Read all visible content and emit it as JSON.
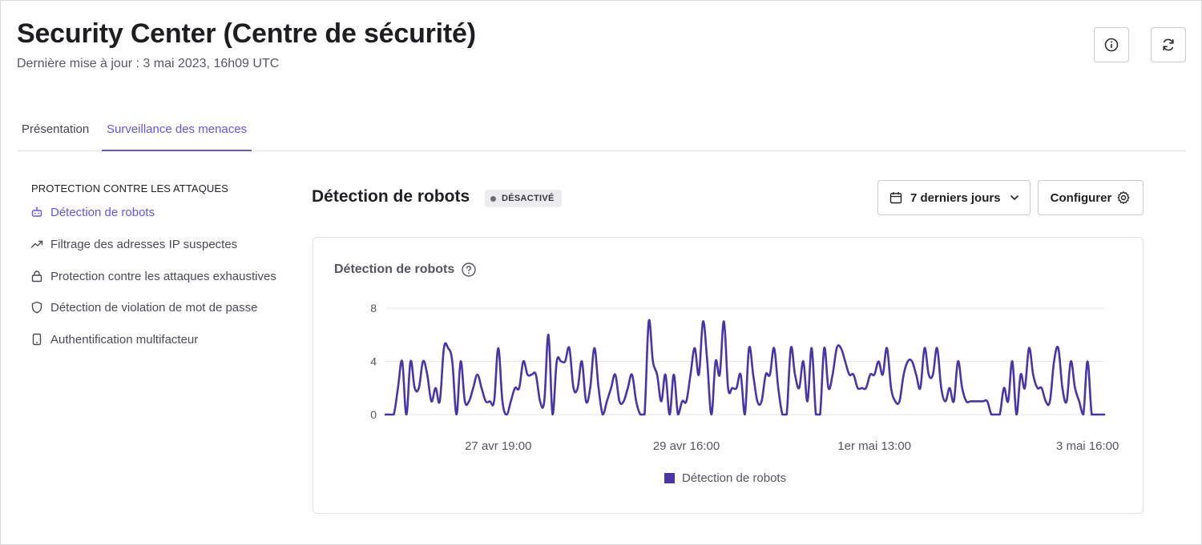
{
  "header": {
    "title": "Security Center (Centre de sécurité)",
    "subtitle": "Dernière mise à jour : 3 mai 2023, 16h09 UTC",
    "info_icon": "info-icon",
    "refresh_icon": "refresh-icon"
  },
  "tabs": [
    {
      "label": "Présentation",
      "active": false
    },
    {
      "label": "Surveillance des menaces",
      "active": true
    }
  ],
  "sidebar": {
    "heading": "PROTECTION CONTRE LES ATTAQUES",
    "items": [
      {
        "label": "Détection de robots",
        "icon": "robot-icon",
        "active": true
      },
      {
        "label": "Filtrage des adresses IP suspectes",
        "icon": "trending-up-icon",
        "active": false
      },
      {
        "label": "Protection contre les attaques exhaustives",
        "icon": "lock-icon",
        "active": false
      },
      {
        "label": "Détection de violation de mot de passe",
        "icon": "shield-icon",
        "active": false
      },
      {
        "label": "Authentification multifacteur",
        "icon": "phone-icon",
        "active": false
      }
    ]
  },
  "main": {
    "title": "Détection de robots",
    "status": "DÉSACTIVÉ",
    "date_range": "7 derniers jours",
    "configure_label": "Configurer"
  },
  "colors": {
    "accent": "#6356e4",
    "series": "#4636a8",
    "grid": "#e6e6ea"
  },
  "chart_data": {
    "type": "line",
    "title": "Détection de robots",
    "xlabel": "",
    "ylabel": "",
    "ylim": [
      0,
      8
    ],
    "yticks": [
      0,
      4,
      8
    ],
    "xticks": [
      {
        "label": "27 avr 19:00",
        "index": 27
      },
      {
        "label": "29 avr 16:00",
        "index": 72
      },
      {
        "label": "1er mai 13:00",
        "index": 117
      },
      {
        "label": "3 mai 16:00",
        "index": 168
      }
    ],
    "grid": true,
    "legend": "bottom",
    "series": [
      {
        "name": "Détection de robots",
        "values": [
          0,
          0,
          0,
          2,
          4,
          0,
          4,
          2,
          2,
          4,
          3,
          1,
          2,
          1,
          5,
          5,
          4,
          0,
          4,
          1,
          1,
          2,
          3,
          2,
          1,
          1,
          1,
          5,
          1,
          0,
          1,
          2,
          2,
          4,
          3,
          3,
          3,
          1,
          1,
          6,
          0,
          4,
          4,
          4,
          5,
          2,
          2,
          4,
          1,
          2,
          5,
          2,
          0,
          1,
          2,
          3,
          1,
          1,
          2,
          3,
          1,
          0,
          0,
          7,
          4,
          3,
          1,
          3,
          0,
          3,
          0,
          1,
          1,
          3,
          5,
          3,
          7,
          4,
          0,
          4,
          3,
          7,
          2,
          2,
          2,
          3,
          0,
          5,
          3,
          1,
          1,
          3,
          3,
          5,
          2,
          0,
          0,
          5,
          3,
          2,
          4,
          1,
          5,
          0,
          0,
          5,
          2,
          3,
          5,
          5,
          4,
          3,
          3,
          2,
          2,
          2,
          3,
          3,
          4,
          3,
          5,
          2,
          1,
          1,
          3,
          4,
          4,
          3,
          2,
          5,
          3,
          3,
          5,
          2,
          1,
          2,
          1,
          4,
          2,
          1,
          1,
          1,
          1,
          1,
          1,
          0,
          0,
          0,
          2,
          1,
          4,
          0,
          3,
          2,
          5,
          3,
          2,
          2,
          1,
          1,
          4,
          5,
          2,
          1,
          4,
          2,
          1,
          0,
          4,
          0,
          0,
          0,
          0
        ]
      }
    ]
  }
}
